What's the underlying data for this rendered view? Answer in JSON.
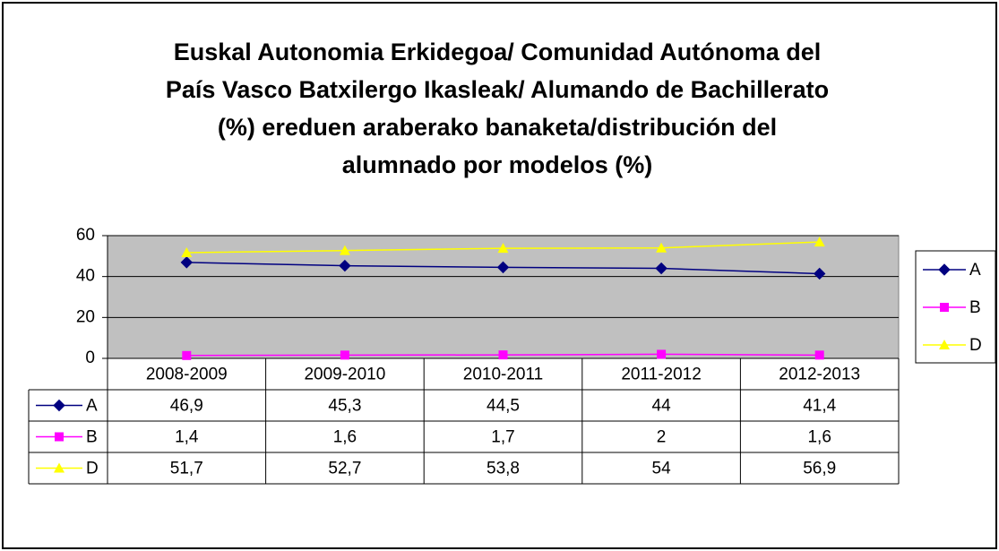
{
  "chart_data": {
    "type": "line",
    "title": [
      "Euskal Autonomia Erkidegoa/ Comunidad Autónoma del",
      "País Vasco  Batxilergo Ikasleak/ Alumando de Bachillerato",
      "(%) ereduen araberako banaketa/distribución del",
      "alumnado por modelos (%)"
    ],
    "categories": [
      "2008-2009",
      "2009-2010",
      "2010-2011",
      "2011-2012",
      "2012-2013"
    ],
    "series": [
      {
        "name": "A",
        "color": "#000080",
        "values": [
          46.9,
          45.3,
          44.5,
          44,
          41.4
        ],
        "value_labels": [
          "46,9",
          "45,3",
          "44,5",
          "44",
          "41,4"
        ]
      },
      {
        "name": "B",
        "color": "#ff00ff",
        "values": [
          1.4,
          1.6,
          1.7,
          2,
          1.6
        ],
        "value_labels": [
          "1,4",
          "1,6",
          "1,7",
          "2",
          "1,6"
        ]
      },
      {
        "name": "D",
        "color": "#ffff00",
        "values": [
          51.7,
          52.7,
          53.8,
          54,
          56.9
        ],
        "value_labels": [
          "51,7",
          "52,7",
          "53,8",
          "54",
          "56,9"
        ]
      }
    ],
    "ylim": [
      0,
      60
    ],
    "yticks": [
      0,
      20,
      40,
      60
    ],
    "grid": true,
    "legend": "right",
    "plot_background": "#c0c0c0"
  }
}
